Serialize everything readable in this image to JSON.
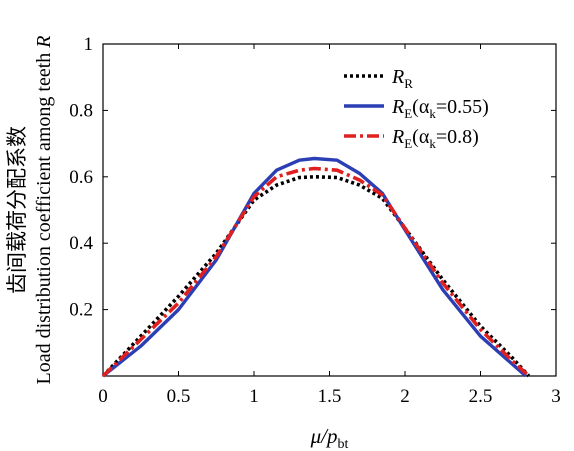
{
  "chart_data": {
    "type": "line",
    "xlabel": {
      "main": "μ/p",
      "sub": "bt"
    },
    "ylabel": {
      "cn": "齿间载荷分配系数",
      "en": "Load distribution coefficient among teeth",
      "var": "R"
    },
    "xlim": [
      0,
      3
    ],
    "ylim": [
      0,
      1
    ],
    "xticks": [
      0,
      0.5,
      1,
      1.5,
      2,
      2.5,
      3
    ],
    "xtick_labels": [
      "0",
      "0.5",
      "1",
      "1.5",
      "2",
      "2.5",
      "3"
    ],
    "yticks": [
      0.2,
      0.4,
      0.6,
      0.8,
      1
    ],
    "ytick_labels": [
      "0.2",
      "0.4",
      "0.6",
      "0.8",
      "1"
    ],
    "grid": false,
    "legend_position": "top-right",
    "series": [
      {
        "name": "R_R",
        "legend": {
          "sym": "R",
          "sub": "R",
          "rest": ""
        },
        "color": "#000000",
        "style": "dotted",
        "x": [
          0,
          0.25,
          0.5,
          0.75,
          1.0,
          1.15,
          1.3,
          1.4,
          1.55,
          1.7,
          1.85,
          2.0,
          2.25,
          2.5,
          2.7,
          2.82
        ],
        "y": [
          0,
          0.12,
          0.24,
          0.37,
          0.53,
          0.575,
          0.598,
          0.6,
          0.598,
          0.575,
          0.535,
          0.445,
          0.29,
          0.15,
          0.06,
          0
        ]
      },
      {
        "name": "R_E(α_k=0.55)",
        "legend": {
          "sym": "R",
          "sub": "E",
          "rest": "(α",
          "sub2": "k",
          "rest2": "=0.55)"
        },
        "color": "#2b3fb5",
        "style": "solid",
        "x": [
          0,
          0.25,
          0.5,
          0.75,
          1.0,
          1.15,
          1.3,
          1.4,
          1.55,
          1.7,
          1.85,
          2.0,
          2.25,
          2.5,
          2.7,
          2.8
        ],
        "y": [
          0,
          0.09,
          0.2,
          0.35,
          0.55,
          0.62,
          0.65,
          0.655,
          0.65,
          0.61,
          0.55,
          0.44,
          0.26,
          0.12,
          0.04,
          0
        ]
      },
      {
        "name": "R_E(α_k=0.8)",
        "legend": {
          "sym": "R",
          "sub": "E",
          "rest": "(α",
          "sub2": "k",
          "rest2": "=0.8)"
        },
        "color": "#e02020",
        "style": "dashdot",
        "x": [
          0,
          0.25,
          0.5,
          0.75,
          1.0,
          1.15,
          1.3,
          1.4,
          1.55,
          1.7,
          1.85,
          2.0,
          2.25,
          2.5,
          2.7,
          2.82
        ],
        "y": [
          0,
          0.11,
          0.22,
          0.36,
          0.54,
          0.6,
          0.62,
          0.625,
          0.62,
          0.59,
          0.545,
          0.445,
          0.28,
          0.14,
          0.05,
          0
        ]
      }
    ]
  }
}
